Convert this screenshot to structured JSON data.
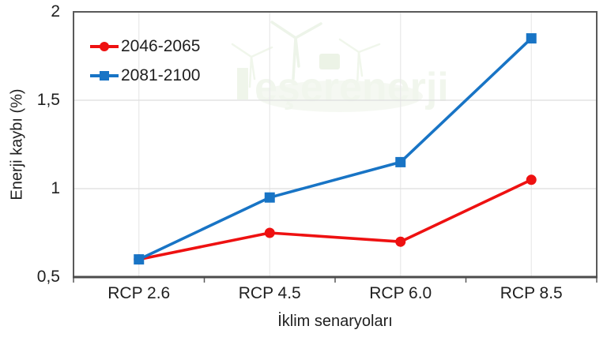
{
  "watermark": {
    "text": "eşerenerji",
    "color": "#e6f0e0"
  },
  "chart_data": {
    "type": "line",
    "title": "",
    "xlabel": "İklim senaryoları",
    "ylabel": "Enerji kaybı (%)",
    "categories": [
      "RCP 2.6",
      "RCP 4.5",
      "RCP 6.0",
      "RCP 8.5"
    ],
    "series": [
      {
        "name": "2046-2065",
        "marker": "circle",
        "color": "#ee1111",
        "values": [
          0.6,
          0.75,
          0.7,
          1.05
        ]
      },
      {
        "name": "2081-2100",
        "marker": "square",
        "color": "#1874c5",
        "values": [
          0.6,
          0.95,
          1.15,
          1.85
        ]
      }
    ],
    "ylim": [
      0.5,
      2
    ],
    "y_ticks": [
      "0,5",
      "1",
      "1,5",
      "2"
    ],
    "y_tick_values": [
      0.5,
      1,
      1.5,
      2
    ],
    "grid": "light gray horizontal and vertical gridlines",
    "legend_position": "top-left inside plot area",
    "axis_color": "#595959",
    "grid_color": "#dedede",
    "text_color": "#1f1f1f"
  }
}
